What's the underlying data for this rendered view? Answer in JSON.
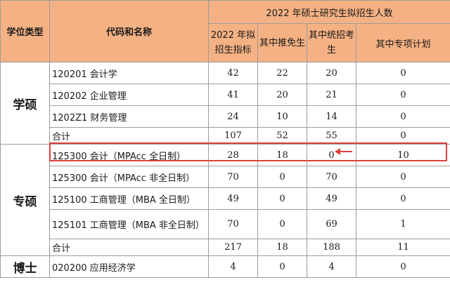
{
  "header": {
    "col_type": "学位类型",
    "col_code": "代码和名称",
    "group_title": "2022 年硕士研究生拟招生人数",
    "sub_plan": "2022 年拟招生指标",
    "sub_exempt": "其中推免生",
    "sub_unified": "其中统招考生",
    "sub_special": "其中专项计划"
  },
  "groups": [
    {
      "category": "学硕",
      "rows": [
        {
          "name": "120201 会计学",
          "plan": "42",
          "exempt": "22",
          "unified": "20",
          "special": "0"
        },
        {
          "name": "120202 企业管理",
          "plan": "41",
          "exempt": "20",
          "unified": "21",
          "special": "0"
        },
        {
          "name": "1202Z1 财务管理",
          "plan": "24",
          "exempt": "10",
          "unified": "14",
          "special": "0"
        },
        {
          "name": "合计",
          "plan": "107",
          "exempt": "52",
          "unified": "55",
          "special": "0"
        }
      ]
    },
    {
      "category": "专硕",
      "rows": [
        {
          "name": "125300 会计（MPAcc 全日制）",
          "plan": "28",
          "exempt": "18",
          "unified": "0",
          "special": "10"
        },
        {
          "name": "125300 会计（MPAcc 非全日制）",
          "plan": "70",
          "exempt": "0",
          "unified": "70",
          "special": "0"
        },
        {
          "name": "125100 工商管理（MBA 全日制）",
          "plan": "49",
          "exempt": "0",
          "unified": "49",
          "special": "0"
        },
        {
          "name": "125101 工商管理（MBA 非全日制）",
          "plan": "70",
          "exempt": "0",
          "unified": "69",
          "special": "1"
        },
        {
          "name": "合计",
          "plan": "217",
          "exempt": "18",
          "unified": "188",
          "special": "11"
        }
      ]
    },
    {
      "category": "博士",
      "rows": [
        {
          "name": "020200 应用经济学",
          "plan": "4",
          "exempt": "0",
          "unified": "4",
          "special": "0"
        }
      ]
    }
  ],
  "colors": {
    "header_bg": "#f4b183",
    "highlight": "#d9413a",
    "grid": "#9c9c9c"
  }
}
